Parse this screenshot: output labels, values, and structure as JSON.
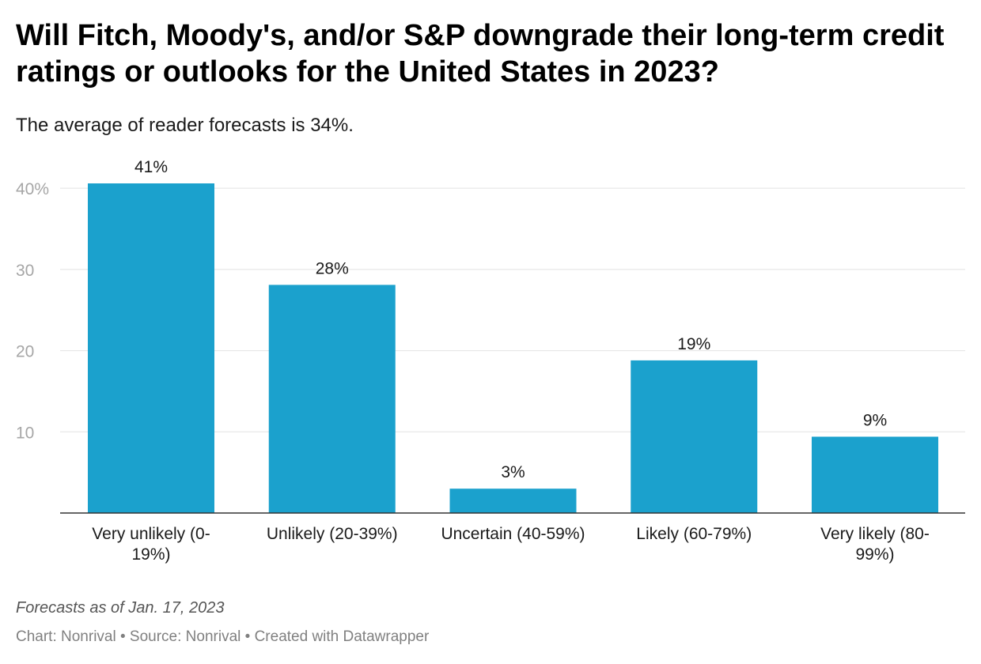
{
  "header": {
    "title": "Will Fitch, Moody's, and/or S&P downgrade their long-term credit ratings or outlooks for the United States in 2023?",
    "subtitle": "The average of reader forecasts is 34%."
  },
  "chart_data": {
    "type": "bar",
    "title": "Will Fitch, Moody's, and/or S&P downgrade their long-term credit ratings or outlooks for the United States in 2023?",
    "subtitle": "The average of reader forecasts is 34%.",
    "categories": [
      [
        "Very unlikely (0-",
        "19%)"
      ],
      [
        "Unlikely (20-39%)"
      ],
      [
        "Uncertain (40-59%)"
      ],
      [
        "Likely (60-79%)"
      ],
      [
        "Very likely (80-",
        "99%)"
      ]
    ],
    "values": [
      40.6,
      28.1,
      3.0,
      18.8,
      9.4
    ],
    "data_labels": [
      "41%",
      "28%",
      "3%",
      "19%",
      "9%"
    ],
    "yticks": [
      {
        "value": 10,
        "label": "10"
      },
      {
        "value": 20,
        "label": "20"
      },
      {
        "value": 30,
        "label": "30"
      },
      {
        "value": 40,
        "label": "40%"
      }
    ],
    "ylim": [
      0,
      40.6
    ],
    "xlabel": "",
    "ylabel": "",
    "grid": true,
    "bar_color": "#1ba1cd"
  },
  "footer": {
    "notes": "Forecasts as of Jan. 17, 2023",
    "source": "Chart: Nonrival • Source: Nonrival • Created with Datawrapper"
  }
}
